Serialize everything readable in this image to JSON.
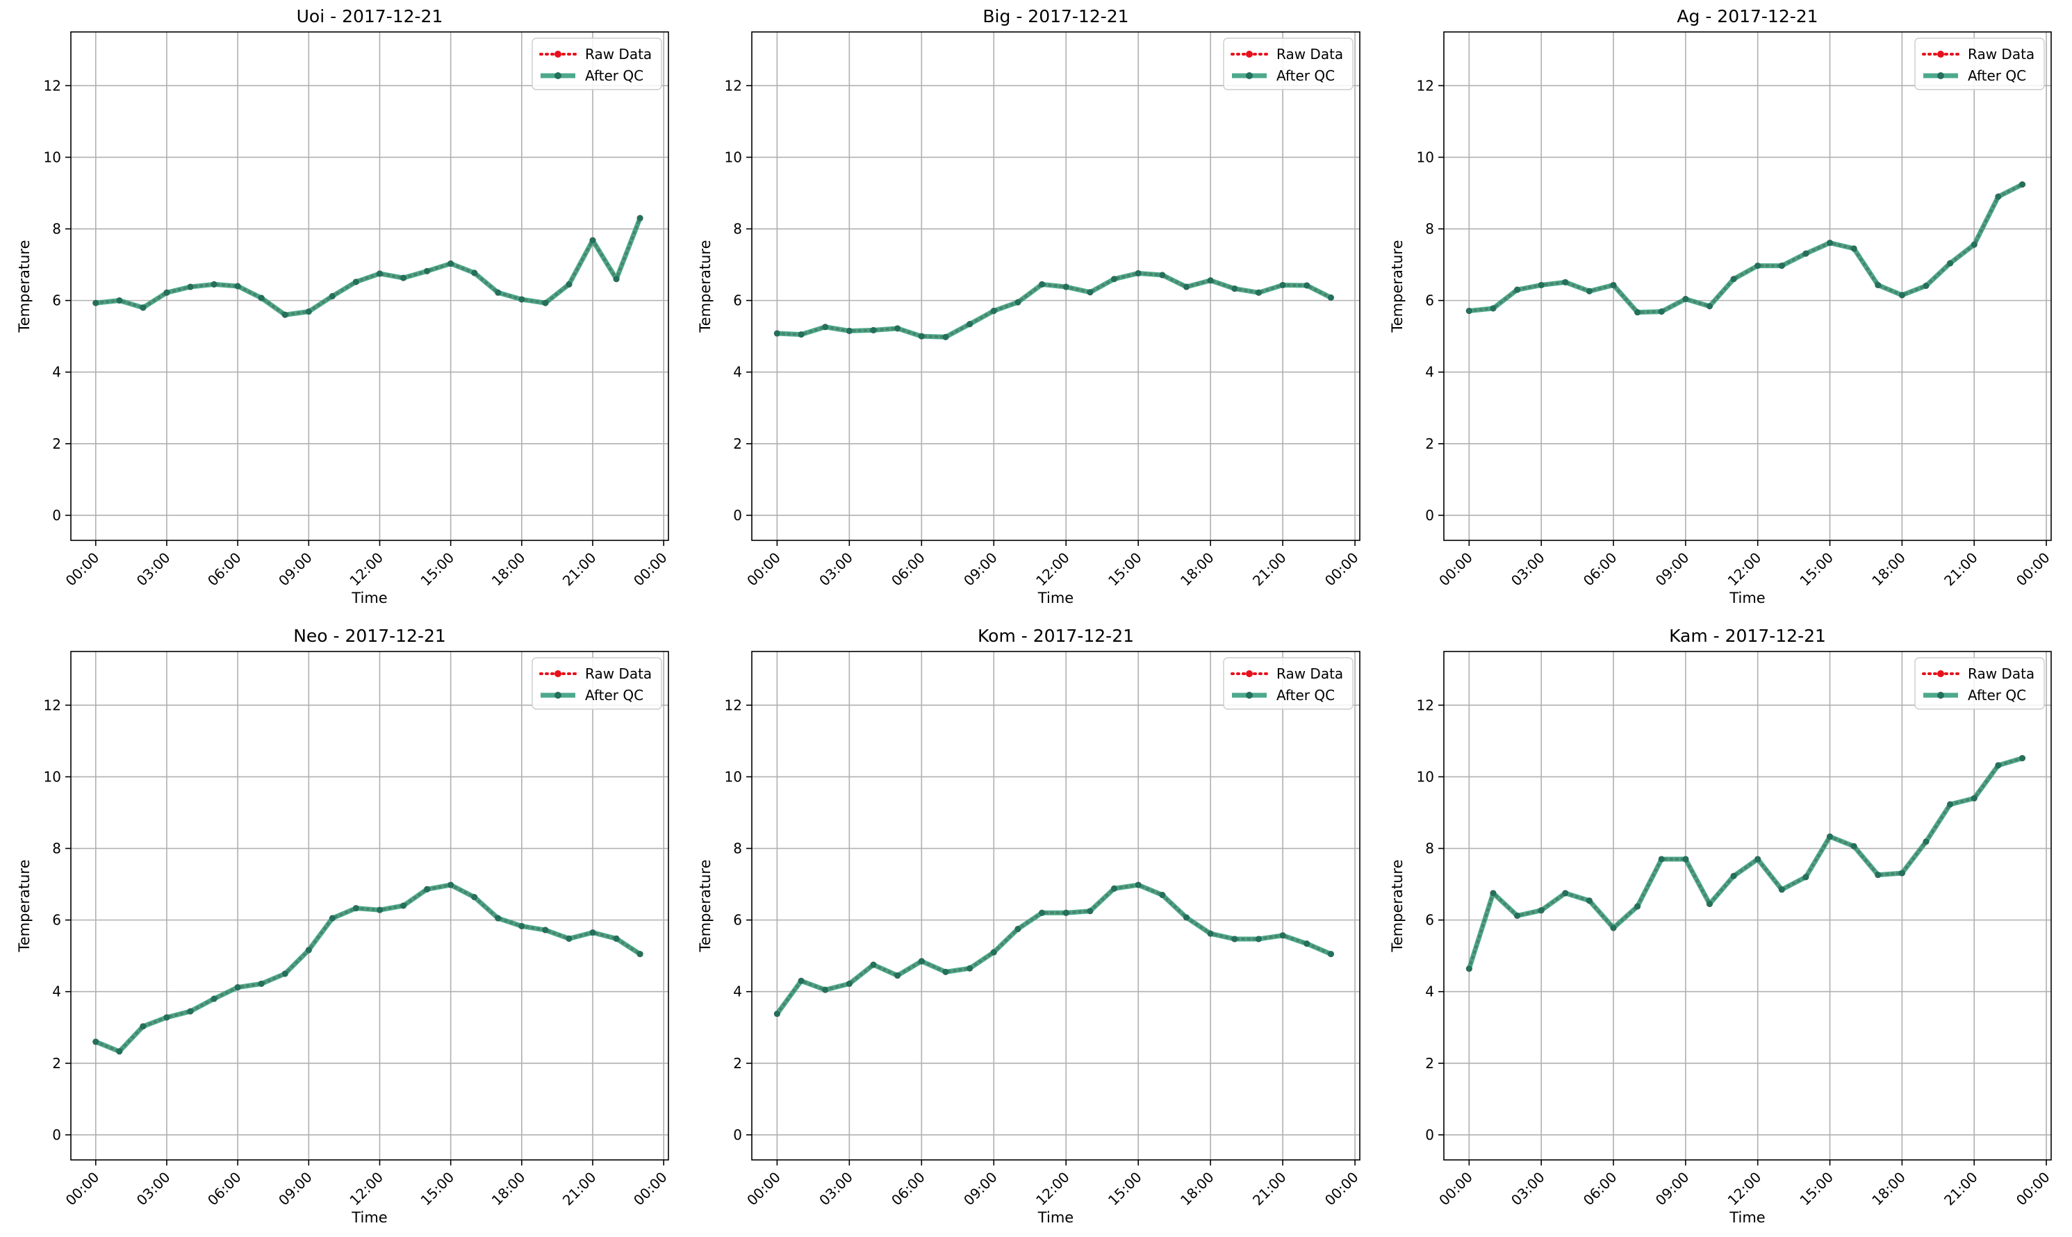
{
  "chart_data": [
    {
      "type": "line",
      "title": "Uoi - 2017-12-21",
      "xlabel": "Time",
      "ylabel": "Temperature",
      "ylim": [
        -0.7,
        13.5
      ],
      "yticks": [
        "0",
        "2",
        "4",
        "6",
        "8",
        "10",
        "12"
      ],
      "xticks": [
        "00:00",
        "03:00",
        "06:00",
        "09:00",
        "12:00",
        "15:00",
        "18:00",
        "21:00",
        "00:00"
      ],
      "x_hours": [
        0,
        1,
        2,
        3,
        4,
        5,
        6,
        7,
        8,
        9,
        10,
        11,
        12,
        13,
        14,
        15,
        16,
        17,
        18,
        19,
        20,
        21,
        22,
        23
      ],
      "grid": true,
      "legend": "top-right",
      "series": [
        {
          "name": "Raw Data",
          "values": [
            5.93,
            6.0,
            5.8,
            6.22,
            6.38,
            6.45,
            6.4,
            6.07,
            5.6,
            5.69,
            6.12,
            6.52,
            6.75,
            6.63,
            6.82,
            7.03,
            6.77,
            6.22,
            6.03,
            5.93,
            6.45,
            7.68,
            6.6,
            8.3
          ]
        },
        {
          "name": "After QC",
          "values": [
            5.93,
            6.0,
            5.8,
            6.22,
            6.38,
            6.45,
            6.4,
            6.07,
            5.6,
            5.69,
            6.12,
            6.52,
            6.75,
            6.63,
            6.82,
            7.03,
            6.77,
            6.22,
            6.03,
            5.93,
            6.45,
            7.68,
            6.6,
            8.3
          ]
        }
      ]
    },
    {
      "type": "line",
      "title": "Big - 2017-12-21",
      "xlabel": "Time",
      "ylabel": "Temperature",
      "ylim": [
        -0.7,
        13.5
      ],
      "yticks": [
        "0",
        "2",
        "4",
        "6",
        "8",
        "10",
        "12"
      ],
      "xticks": [
        "00:00",
        "03:00",
        "06:00",
        "09:00",
        "12:00",
        "15:00",
        "18:00",
        "21:00",
        "00:00"
      ],
      "x_hours": [
        0,
        1,
        2,
        3,
        4,
        5,
        6,
        7,
        8,
        9,
        10,
        11,
        12,
        13,
        14,
        15,
        16,
        17,
        18,
        19,
        20,
        21,
        22,
        23
      ],
      "grid": true,
      "legend": "top-right",
      "series": [
        {
          "name": "Raw Data",
          "values": [
            5.08,
            5.05,
            5.26,
            5.15,
            5.17,
            5.22,
            5.0,
            4.98,
            5.34,
            5.71,
            5.95,
            6.45,
            6.38,
            6.23,
            6.6,
            6.76,
            6.71,
            6.38,
            6.56,
            6.33,
            6.22,
            6.43,
            6.42,
            6.08
          ]
        },
        {
          "name": "After QC",
          "values": [
            5.08,
            5.05,
            5.26,
            5.15,
            5.17,
            5.22,
            5.0,
            4.98,
            5.34,
            5.71,
            5.95,
            6.45,
            6.38,
            6.23,
            6.6,
            6.76,
            6.71,
            6.38,
            6.56,
            6.33,
            6.22,
            6.43,
            6.42,
            6.08
          ]
        }
      ]
    },
    {
      "type": "line",
      "title": "Ag - 2017-12-21",
      "xlabel": "Time",
      "ylabel": "Temperature",
      "ylim": [
        -0.7,
        13.5
      ],
      "yticks": [
        "0",
        "2",
        "4",
        "6",
        "8",
        "10",
        "12"
      ],
      "xticks": [
        "00:00",
        "03:00",
        "06:00",
        "09:00",
        "12:00",
        "15:00",
        "18:00",
        "21:00",
        "00:00"
      ],
      "x_hours": [
        0,
        1,
        2,
        3,
        4,
        5,
        6,
        7,
        8,
        9,
        10,
        11,
        12,
        13,
        14,
        15,
        16,
        17,
        18,
        19,
        20,
        21,
        22,
        23
      ],
      "grid": true,
      "legend": "top-right",
      "series": [
        {
          "name": "Raw Data",
          "values": [
            5.71,
            5.78,
            6.3,
            6.43,
            6.51,
            6.26,
            6.43,
            5.67,
            5.69,
            6.04,
            5.84,
            6.6,
            6.97,
            6.97,
            7.31,
            7.61,
            7.45,
            6.43,
            6.15,
            6.41,
            7.04,
            7.56,
            8.9,
            9.24
          ]
        },
        {
          "name": "After QC",
          "values": [
            5.71,
            5.78,
            6.3,
            6.43,
            6.51,
            6.26,
            6.43,
            5.67,
            5.69,
            6.04,
            5.84,
            6.6,
            6.97,
            6.97,
            7.31,
            7.61,
            7.45,
            6.43,
            6.15,
            6.41,
            7.04,
            7.56,
            8.9,
            9.24
          ]
        }
      ]
    },
    {
      "type": "line",
      "title": "Neo - 2017-12-21",
      "xlabel": "Time",
      "ylabel": "Temperature",
      "ylim": [
        -0.7,
        13.5
      ],
      "yticks": [
        "0",
        "2",
        "4",
        "6",
        "8",
        "10",
        "12"
      ],
      "xticks": [
        "00:00",
        "03:00",
        "06:00",
        "09:00",
        "12:00",
        "15:00",
        "18:00",
        "21:00",
        "00:00"
      ],
      "x_hours": [
        0,
        1,
        2,
        3,
        4,
        5,
        6,
        7,
        8,
        9,
        10,
        11,
        12,
        13,
        14,
        15,
        16,
        17,
        18,
        19,
        20,
        21,
        22,
        23
      ],
      "grid": true,
      "legend": "top-right",
      "series": [
        {
          "name": "Raw Data",
          "values": [
            2.6,
            2.33,
            3.03,
            3.28,
            3.45,
            3.8,
            4.12,
            4.22,
            4.5,
            5.16,
            6.05,
            6.33,
            6.28,
            6.4,
            6.86,
            6.98,
            6.64,
            6.05,
            5.83,
            5.72,
            5.48,
            5.65,
            5.48,
            5.05
          ]
        },
        {
          "name": "After QC",
          "values": [
            2.6,
            2.33,
            3.03,
            3.28,
            3.45,
            3.8,
            4.12,
            4.22,
            4.5,
            5.16,
            6.05,
            6.33,
            6.28,
            6.4,
            6.86,
            6.98,
            6.64,
            6.05,
            5.83,
            5.72,
            5.48,
            5.65,
            5.48,
            5.05
          ]
        }
      ]
    },
    {
      "type": "line",
      "title": "Kom - 2017-12-21",
      "xlabel": "Time",
      "ylabel": "Temperature",
      "ylim": [
        -0.7,
        13.5
      ],
      "yticks": [
        "0",
        "2",
        "4",
        "6",
        "8",
        "10",
        "12"
      ],
      "xticks": [
        "00:00",
        "03:00",
        "06:00",
        "09:00",
        "12:00",
        "15:00",
        "18:00",
        "21:00",
        "00:00"
      ],
      "x_hours": [
        0,
        1,
        2,
        3,
        4,
        5,
        6,
        7,
        8,
        9,
        10,
        11,
        12,
        13,
        14,
        15,
        16,
        17,
        18,
        19,
        20,
        21,
        22,
        23
      ],
      "grid": true,
      "legend": "top-right",
      "series": [
        {
          "name": "Raw Data",
          "values": [
            3.38,
            4.3,
            4.05,
            4.22,
            4.75,
            4.45,
            4.85,
            4.55,
            4.65,
            5.1,
            5.75,
            6.2,
            6.2,
            6.25,
            6.88,
            6.98,
            6.7,
            6.07,
            5.62,
            5.47,
            5.47,
            5.57,
            5.34,
            5.05
          ]
        },
        {
          "name": "After QC",
          "values": [
            3.38,
            4.3,
            4.05,
            4.22,
            4.75,
            4.45,
            4.85,
            4.55,
            4.65,
            5.1,
            5.75,
            6.2,
            6.2,
            6.25,
            6.88,
            6.98,
            6.7,
            6.07,
            5.62,
            5.47,
            5.47,
            5.57,
            5.34,
            5.05
          ]
        }
      ]
    },
    {
      "type": "line",
      "title": "Kam - 2017-12-21",
      "xlabel": "Time",
      "ylabel": "Temperature",
      "ylim": [
        -0.7,
        13.5
      ],
      "yticks": [
        "0",
        "2",
        "4",
        "6",
        "8",
        "10",
        "12"
      ],
      "xticks": [
        "00:00",
        "03:00",
        "06:00",
        "09:00",
        "12:00",
        "15:00",
        "18:00",
        "21:00",
        "00:00"
      ],
      "x_hours": [
        0,
        1,
        2,
        3,
        4,
        5,
        6,
        7,
        8,
        9,
        10,
        11,
        12,
        13,
        14,
        15,
        16,
        17,
        18,
        19,
        20,
        21,
        22,
        23
      ],
      "grid": true,
      "legend": "top-right",
      "series": [
        {
          "name": "Raw Data",
          "values": [
            4.64,
            6.75,
            6.12,
            6.27,
            6.75,
            6.54,
            5.78,
            6.38,
            7.7,
            7.7,
            6.45,
            7.23,
            7.7,
            6.85,
            7.2,
            8.33,
            8.06,
            7.26,
            7.31,
            8.19,
            9.23,
            9.4,
            10.32,
            10.52
          ]
        },
        {
          "name": "After QC",
          "values": [
            4.64,
            6.75,
            6.12,
            6.27,
            6.75,
            6.54,
            5.78,
            6.38,
            7.7,
            7.7,
            6.45,
            7.23,
            7.7,
            6.85,
            7.2,
            8.33,
            8.06,
            7.26,
            7.31,
            8.19,
            9.23,
            9.4,
            10.32,
            10.52
          ]
        }
      ]
    }
  ],
  "colors": {
    "raw": "#e8101b",
    "qc": "#2e9a78",
    "qc_marker": "#23705c",
    "grid": "#b0b0b0",
    "axis": "#000000"
  }
}
